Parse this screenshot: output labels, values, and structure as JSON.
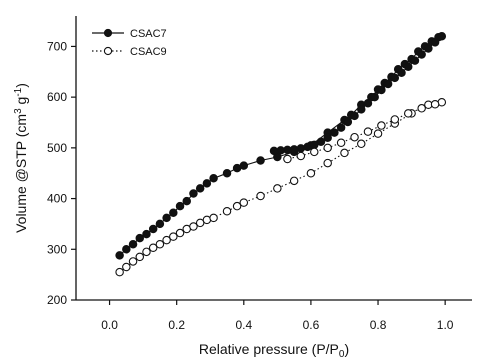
{
  "chart_data": {
    "type": "line",
    "xlabel": "Relative pressure (P/P",
    "xlabel_sub": "0",
    "xlabel_end": ")",
    "ylabel": "Volume @STP (cm",
    "ylabel_sup1": "3",
    "ylabel_mid": " g",
    "ylabel_sup2": "-1",
    "ylabel_end": ")",
    "xlim": [
      -0.1,
      1.08
    ],
    "ylim": [
      200,
      760
    ],
    "xticks": [
      "0.0",
      "0.2",
      "0.4",
      "0.6",
      "0.8",
      "1.0"
    ],
    "xtick_values": [
      0,
      0.2,
      0.4,
      0.6,
      0.8,
      1.0
    ],
    "yticks": [
      "200",
      "300",
      "400",
      "500",
      "600",
      "700"
    ],
    "ytick_values": [
      200,
      300,
      400,
      500,
      600,
      700
    ],
    "legend_position": "top-left",
    "grid": false,
    "series": [
      {
        "name": "CSAC7",
        "marker": "filled-circle",
        "line": "solid",
        "color": "#111111",
        "x": [
          0.03,
          0.05,
          0.07,
          0.09,
          0.11,
          0.13,
          0.15,
          0.17,
          0.19,
          0.21,
          0.23,
          0.25,
          0.27,
          0.29,
          0.31,
          0.35,
          0.38,
          0.4,
          0.45,
          0.5,
          0.55,
          0.6,
          0.65,
          0.7,
          0.72,
          0.75,
          0.78,
          0.8,
          0.82,
          0.84,
          0.86,
          0.88,
          0.9,
          0.92,
          0.94,
          0.96,
          0.98,
          0.99,
          0.97,
          0.95,
          0.93,
          0.91,
          0.89,
          0.87,
          0.85,
          0.83,
          0.81,
          0.79,
          0.77,
          0.75,
          0.73,
          0.71,
          0.69,
          0.67,
          0.65,
          0.63,
          0.61,
          0.59,
          0.57,
          0.55,
          0.53,
          0.51,
          0.49
        ],
        "y": [
          288,
          300,
          310,
          322,
          330,
          340,
          350,
          362,
          372,
          385,
          395,
          410,
          420,
          430,
          440,
          450,
          460,
          465,
          475,
          482,
          492,
          505,
          530,
          555,
          565,
          585,
          600,
          615,
          628,
          640,
          655,
          665,
          675,
          690,
          700,
          710,
          718,
          720,
          708,
          696,
          684,
          672,
          660,
          648,
          638,
          626,
          614,
          600,
          588,
          576,
          563,
          551,
          540,
          530,
          520,
          512,
          506,
          502,
          499,
          497,
          496,
          495,
          494
        ]
      },
      {
        "name": "CSAC9",
        "marker": "open-circle",
        "line": "dotted",
        "color": "#111111",
        "x": [
          0.03,
          0.05,
          0.07,
          0.09,
          0.11,
          0.13,
          0.15,
          0.17,
          0.19,
          0.21,
          0.23,
          0.25,
          0.27,
          0.29,
          0.31,
          0.35,
          0.38,
          0.4,
          0.45,
          0.5,
          0.55,
          0.6,
          0.65,
          0.7,
          0.75,
          0.8,
          0.85,
          0.9,
          0.95,
          0.99,
          0.97,
          0.93,
          0.89,
          0.85,
          0.81,
          0.77,
          0.73,
          0.69,
          0.65,
          0.61,
          0.57,
          0.53
        ],
        "y": [
          255,
          265,
          276,
          285,
          295,
          303,
          310,
          318,
          325,
          332,
          340,
          345,
          352,
          358,
          362,
          375,
          385,
          392,
          405,
          420,
          435,
          450,
          470,
          490,
          508,
          528,
          548,
          568,
          585,
          590,
          586,
          578,
          568,
          556,
          544,
          532,
          521,
          510,
          500,
          492,
          484,
          478
        ]
      }
    ]
  }
}
